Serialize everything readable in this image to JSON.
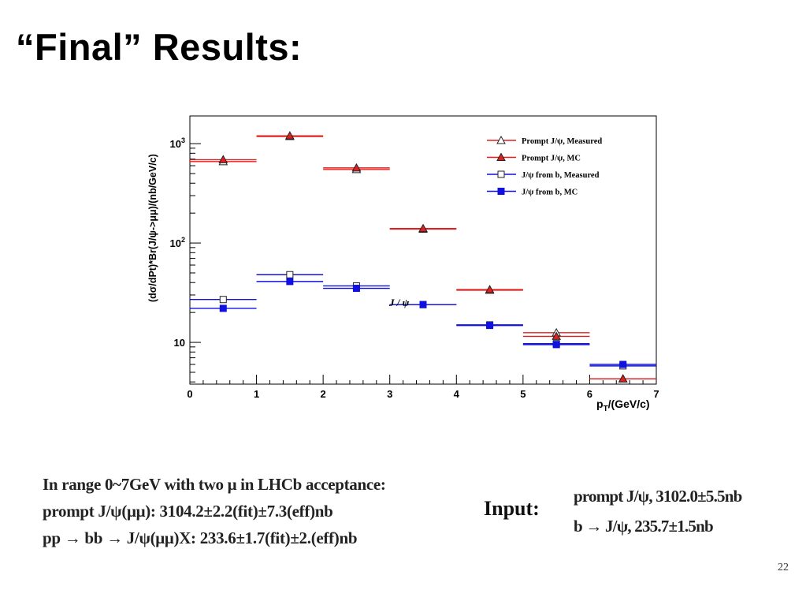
{
  "slide": {
    "title": "“Final” Results:",
    "page_number": "22"
  },
  "notes": {
    "line1": "In range 0~7GeV with two μ in LHCb acceptance:",
    "line2": "prompt J/ψ(μμ): 3104.2±2.2(fit)±7.3(eff)nb",
    "line3": "pp → bb → J/ψ(μμ)X: 233.6±1.7(fit)±2.(eff)nb"
  },
  "input": {
    "label": "Input:",
    "line1": "prompt  J/ψ,  3102.0±5.5nb",
    "line2": "b → J/ψ,   235.7±1.5nb"
  },
  "chart_data": {
    "type": "scatter",
    "title": "",
    "xlabel": "p_T/(GeV/c)",
    "ylabel": "(dσ/dPt)*Br(J/ψ->μμ)/(nb/GeV/c)",
    "xlim": [
      0,
      7
    ],
    "ylim": [
      3.8,
      1900
    ],
    "yscale": "log",
    "x_ticks": [
      "0",
      "1",
      "2",
      "3",
      "4",
      "5",
      "6",
      "7"
    ],
    "y_ticks": [
      "10",
      "10^2",
      "10^3"
    ],
    "annotation": "J / ψ",
    "legend_position": "top-right",
    "grid": false,
    "series": [
      {
        "name": "Prompt J/ψ, Measured",
        "marker": "open-triangle",
        "color": "#e02020",
        "x": [
          0.5,
          1.5,
          2.5,
          3.5,
          4.5,
          5.5,
          6.5
        ],
        "x_err": 0.5,
        "y": [
          660,
          1180,
          550,
          138,
          33.5,
          12.5,
          4.3
        ]
      },
      {
        "name": "Prompt J/ψ, MC",
        "marker": "filled-triangle",
        "color": "#e02020",
        "x": [
          0.5,
          1.5,
          2.5,
          3.5,
          4.5,
          5.5,
          6.5
        ],
        "x_err": 0.5,
        "y": [
          690,
          1200,
          570,
          140,
          34,
          11.5,
          4.3
        ]
      },
      {
        "name": "J/ψ from b, Measured",
        "marker": "open-square",
        "color": "#1010e0",
        "x": [
          0.5,
          1.5,
          2.5,
          3.5,
          4.5,
          5.5,
          6.5
        ],
        "x_err": 0.5,
        "y": [
          27,
          48,
          37,
          24,
          15,
          9.7,
          5.8
        ]
      },
      {
        "name": "J/ψ from b, MC",
        "marker": "filled-square",
        "color": "#1010e0",
        "x": [
          0.5,
          1.5,
          2.5,
          3.5,
          4.5,
          5.5,
          6.5
        ],
        "x_err": 0.5,
        "y": [
          22,
          41,
          35,
          24,
          14.8,
          9.5,
          6.0
        ]
      }
    ]
  }
}
